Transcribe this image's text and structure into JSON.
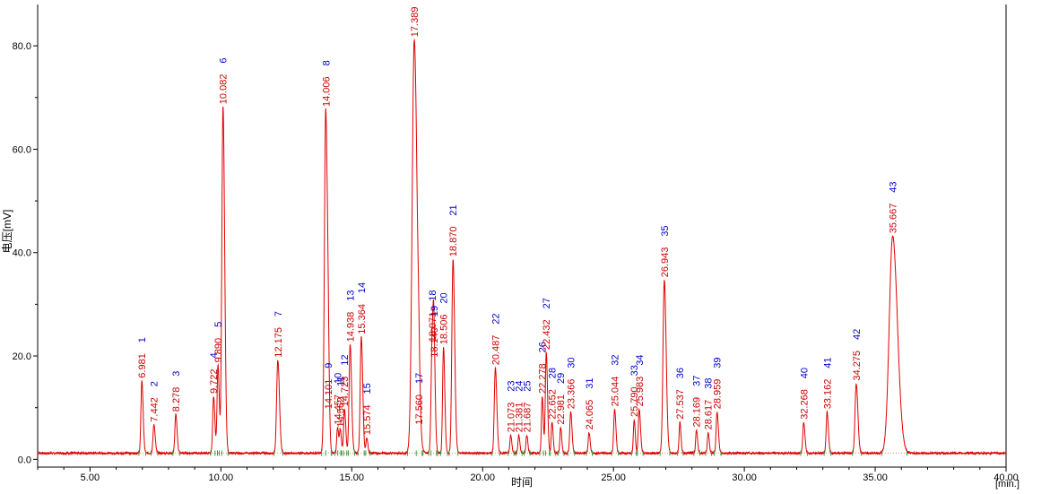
{
  "chart_data": {
    "type": "line",
    "xlabel": "时间",
    "ylabel": "电压[mV]",
    "x_unit_label": "[min.]",
    "xlim": [
      3.0,
      40.0
    ],
    "ylim": [
      -1.5,
      88.0
    ],
    "xticks": [
      "5.00",
      "10.00",
      "15.00",
      "20.00",
      "25.00",
      "30.00",
      "35.00",
      "40.00"
    ],
    "yticks": [
      "0.0",
      "20.0",
      "40.0",
      "60.0",
      "80.0"
    ],
    "baseline": 1.2,
    "grid": false,
    "line_color": "#e00000",
    "peak_label_color": "#cc0000",
    "peak_number_color": "#0000cc",
    "peaks": [
      {
        "n": "1",
        "rt": "6.981",
        "x": 6.981,
        "h": 14.0,
        "w": 0.035
      },
      {
        "n": "2",
        "rt": "7.442",
        "x": 7.442,
        "h": 5.5,
        "w": 0.035
      },
      {
        "n": "3",
        "rt": "8.278",
        "x": 8.278,
        "h": 7.5,
        "w": 0.035
      },
      {
        "n": "4",
        "rt": "9.722",
        "x": 9.722,
        "h": 11.0,
        "w": 0.035
      },
      {
        "n": "5",
        "rt": "9.890",
        "x": 9.89,
        "h": 17.0,
        "w": 0.035
      },
      {
        "n": "6",
        "rt": "10.082",
        "x": 10.082,
        "h": 67.0,
        "w": 0.045
      },
      {
        "n": "7",
        "rt": "12.175",
        "x": 12.175,
        "h": 18.0,
        "w": 0.045
      },
      {
        "n": "8",
        "rt": "14.006",
        "x": 14.006,
        "h": 66.5,
        "w": 0.05
      },
      {
        "n": "9",
        "rt": "14.101",
        "x": 14.101,
        "h": 8.0,
        "w": 0.03
      },
      {
        "n": "10",
        "rt": "14.457",
        "x": 14.457,
        "h": 5.0,
        "w": 0.03
      },
      {
        "n": "11",
        "rt": "14.562",
        "x": 14.562,
        "h": 4.5,
        "w": 0.03
      },
      {
        "n": "12",
        "rt": "14.723",
        "x": 14.723,
        "h": 8.5,
        "w": 0.035
      },
      {
        "n": "13",
        "rt": "14.938",
        "x": 14.938,
        "h": 21.0,
        "w": 0.04
      },
      {
        "n": "14",
        "rt": "15.364",
        "x": 15.364,
        "h": 22.5,
        "w": 0.04
      },
      {
        "n": "15",
        "rt": "15.574",
        "x": 15.574,
        "h": 3.0,
        "w": 0.03
      },
      {
        "n": "16",
        "rt": "17.389",
        "x": 17.389,
        "h": 80.0,
        "w": 0.08
      },
      {
        "n": "17",
        "rt": "17.560",
        "x": 17.56,
        "h": 5.0,
        "w": 0.03
      },
      {
        "n": "18",
        "rt": "18.071",
        "x": 18.071,
        "h": 21.0,
        "w": 0.04
      },
      {
        "n": "19",
        "rt": "18.140",
        "x": 18.14,
        "h": 18.0,
        "w": 0.035
      },
      {
        "n": "20",
        "rt": "18.506",
        "x": 18.506,
        "h": 20.5,
        "w": 0.035
      },
      {
        "n": "21",
        "rt": "18.870",
        "x": 18.87,
        "h": 37.5,
        "w": 0.045
      },
      {
        "n": "22",
        "rt": "20.487",
        "x": 20.487,
        "h": 16.5,
        "w": 0.04
      },
      {
        "n": "23",
        "rt": "21.073",
        "x": 21.073,
        "h": 3.5,
        "w": 0.03
      },
      {
        "n": "24",
        "rt": "21.381",
        "x": 21.381,
        "h": 3.5,
        "w": 0.03
      },
      {
        "n": "25",
        "rt": "21.687",
        "x": 21.687,
        "h": 3.5,
        "w": 0.03
      },
      {
        "n": "26",
        "rt": "22.278",
        "x": 22.278,
        "h": 11.0,
        "w": 0.03
      },
      {
        "n": "27",
        "rt": "22.432",
        "x": 22.432,
        "h": 19.5,
        "w": 0.035
      },
      {
        "n": "28",
        "rt": "22.652",
        "x": 22.652,
        "h": 6.0,
        "w": 0.03
      },
      {
        "n": "29",
        "rt": "22.981",
        "x": 22.981,
        "h": 5.0,
        "w": 0.03
      },
      {
        "n": "30",
        "rt": "23.366",
        "x": 23.366,
        "h": 8.0,
        "w": 0.035
      },
      {
        "n": "31",
        "rt": "24.065",
        "x": 24.065,
        "h": 4.0,
        "w": 0.03
      },
      {
        "n": "32",
        "rt": "25.044",
        "x": 25.044,
        "h": 8.5,
        "w": 0.035
      },
      {
        "n": "33",
        "rt": "25.790",
        "x": 25.79,
        "h": 6.5,
        "w": 0.03
      },
      {
        "n": "34",
        "rt": "25.983",
        "x": 25.983,
        "h": 8.5,
        "w": 0.035
      },
      {
        "n": "35",
        "rt": "26.943",
        "x": 26.943,
        "h": 33.5,
        "w": 0.05
      },
      {
        "n": "36",
        "rt": "27.537",
        "x": 27.537,
        "h": 6.0,
        "w": 0.03
      },
      {
        "n": "37",
        "rt": "28.169",
        "x": 28.169,
        "h": 4.5,
        "w": 0.03
      },
      {
        "n": "38",
        "rt": "28.617",
        "x": 28.617,
        "h": 4.0,
        "w": 0.03
      },
      {
        "n": "39",
        "rt": "28.959",
        "x": 28.959,
        "h": 8.0,
        "w": 0.035
      },
      {
        "n": "40",
        "rt": "32.268",
        "x": 32.268,
        "h": 6.0,
        "w": 0.035
      },
      {
        "n": "41",
        "rt": "33.162",
        "x": 33.162,
        "h": 8.0,
        "w": 0.035
      },
      {
        "n": "42",
        "rt": "34.275",
        "x": 34.275,
        "h": 13.5,
        "w": 0.045
      },
      {
        "n": "43",
        "rt": "35.667",
        "x": 35.667,
        "h": 42.0,
        "w": 0.13
      }
    ]
  }
}
